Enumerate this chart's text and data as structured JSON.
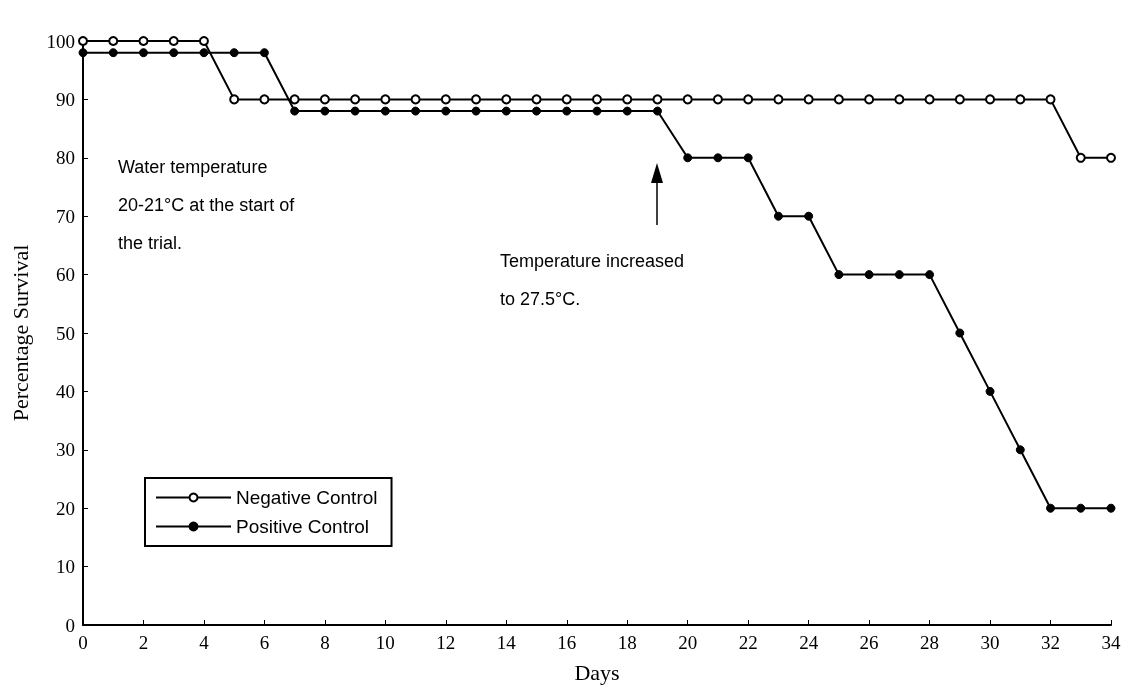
{
  "chart_data": {
    "type": "line",
    "xlabel": "Days",
    "ylabel": "Percentage Survival",
    "x": [
      0,
      1,
      2,
      3,
      4,
      5,
      6,
      7,
      8,
      9,
      10,
      11,
      12,
      13,
      14,
      15,
      16,
      17,
      18,
      19,
      20,
      21,
      22,
      23,
      24,
      25,
      26,
      27,
      28,
      29,
      30,
      31,
      32,
      33,
      34
    ],
    "series": [
      {
        "name": "Negative Control",
        "color": "#000000",
        "values": [
          100,
          100,
          100,
          100,
          100,
          90,
          90,
          90,
          90,
          90,
          90,
          90,
          90,
          90,
          90,
          90,
          90,
          90,
          90,
          90,
          90,
          90,
          90,
          90,
          90,
          90,
          90,
          90,
          90,
          90,
          90,
          90,
          90,
          80,
          80
        ]
      },
      {
        "name": "Positive Control",
        "color": "#000000",
        "values": [
          98,
          98,
          98,
          98,
          98,
          98,
          98,
          88,
          88,
          88,
          88,
          88,
          88,
          88,
          88,
          88,
          88,
          88,
          88,
          88,
          80,
          80,
          80,
          70,
          70,
          60,
          60,
          60,
          60,
          50,
          40,
          30,
          20,
          20,
          20
        ]
      }
    ],
    "xlim": [
      0,
      34
    ],
    "xticks": [
      0,
      2,
      4,
      6,
      8,
      10,
      12,
      14,
      16,
      18,
      20,
      22,
      24,
      26,
      28,
      30,
      32,
      34
    ],
    "ylim": [
      0,
      100
    ],
    "yticks": [
      0,
      10,
      20,
      30,
      40,
      50,
      60,
      70,
      80,
      90,
      100
    ],
    "grid": false,
    "legend": "bottom left",
    "marker": "circle",
    "line_style": "solid",
    "annotations": [
      "Water temperature 20-21°C at the start of the trial.",
      "Temperature increased to 27.5°C."
    ]
  }
}
